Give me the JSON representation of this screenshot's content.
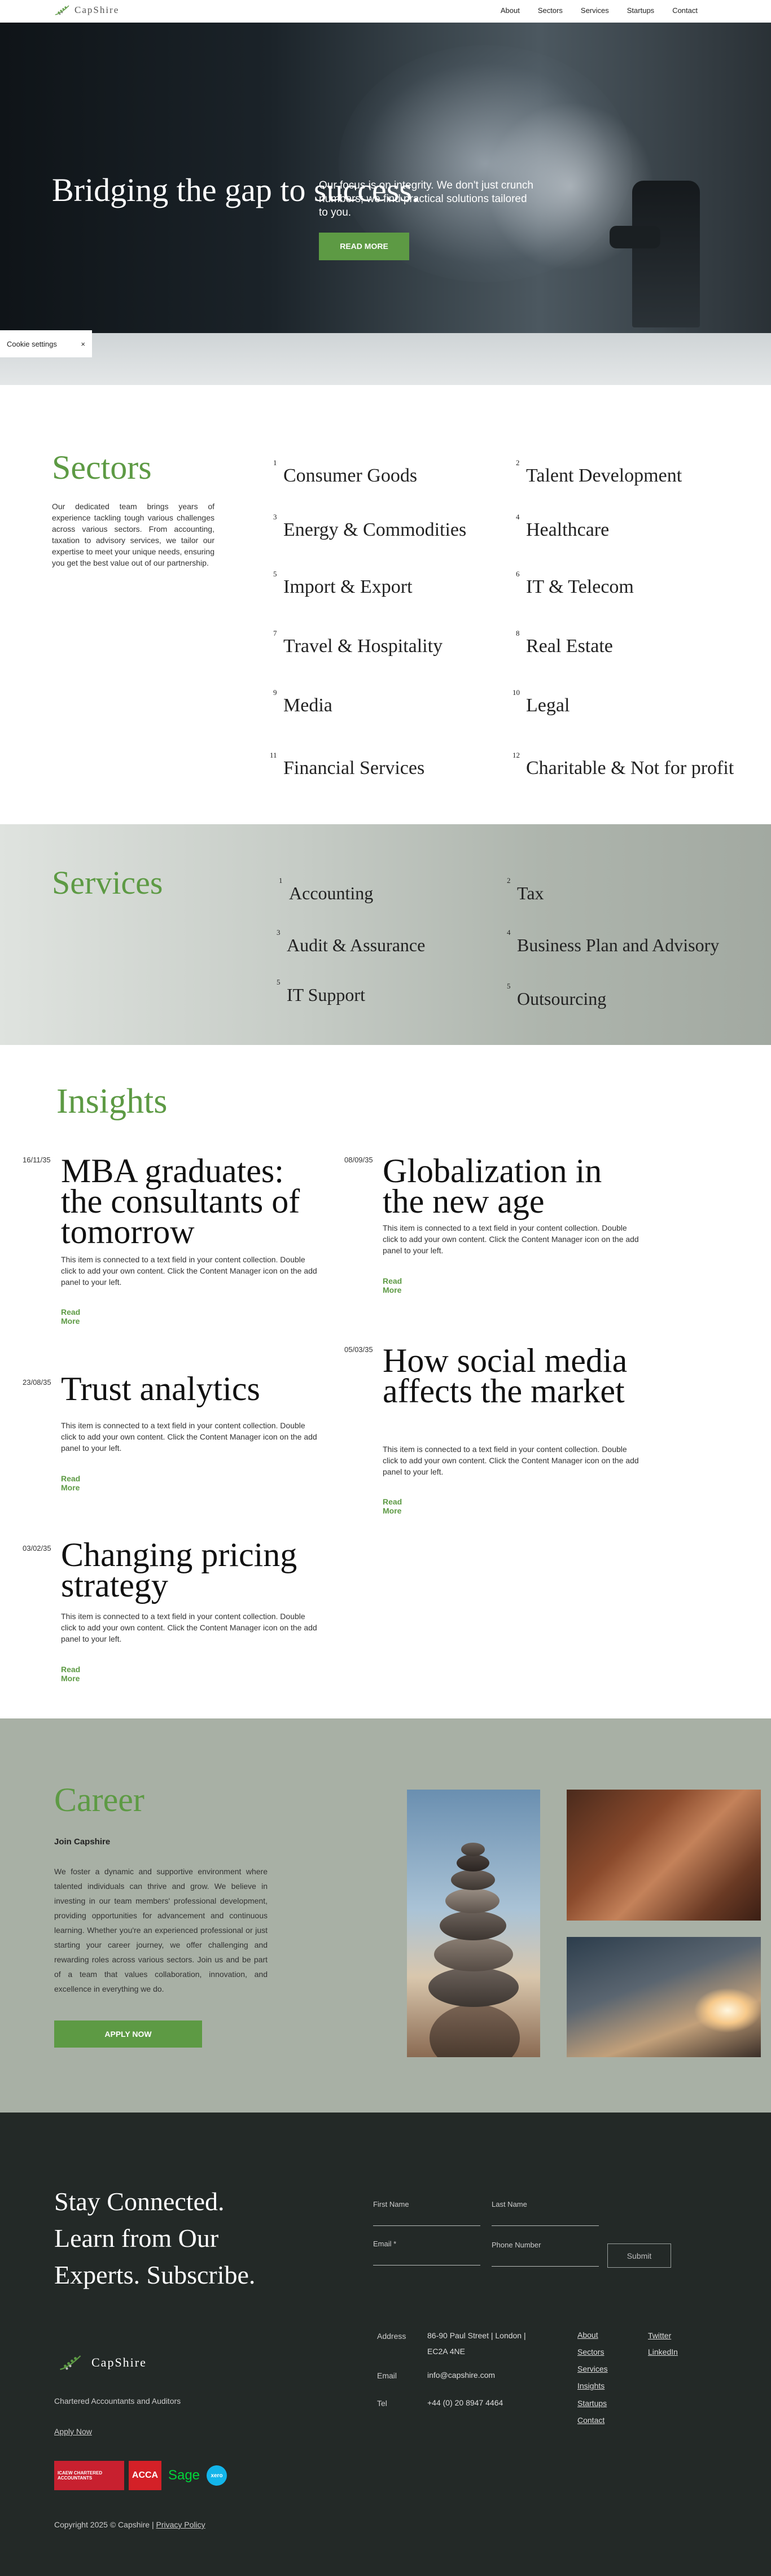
{
  "header": {
    "logo_text": "CapShire",
    "nav": [
      "About",
      "Sectors",
      "Services",
      "Startups",
      "Contact"
    ]
  },
  "hero": {
    "title": "Bridging the gap to success.",
    "text": "Our focus is on integrity. We don't just crunch numbers; we find practical solutions tailored to you.",
    "button": "READ MORE"
  },
  "cookie": {
    "label": "Cookie settings",
    "close": "×"
  },
  "sectors": {
    "title": "Sectors",
    "description": "Our dedicated team brings years of experience tackling tough various challenges across various sectors. From accounting, taxation to advisory services, we tailor our expertise to meet your unique needs, ensuring you get the best value out of our partnership.",
    "items": [
      {
        "n": "1",
        "label": "Consumer Goods"
      },
      {
        "n": "2",
        "label": "Talent Development"
      },
      {
        "n": "3",
        "label": "Energy & Commodities"
      },
      {
        "n": "4",
        "label": "Healthcare"
      },
      {
        "n": "5",
        "label": "Import & Export"
      },
      {
        "n": "6",
        "label": "IT & Telecom"
      },
      {
        "n": "7",
        "label": "Travel & Hospitality"
      },
      {
        "n": "8",
        "label": "Real Estate"
      },
      {
        "n": "9",
        "label": "Media"
      },
      {
        "n": "10",
        "label": "Legal"
      },
      {
        "n": "11",
        "label": "Financial Services"
      },
      {
        "n": "12",
        "label": "Charitable & Not for profit"
      }
    ]
  },
  "services": {
    "title": "Services",
    "items": [
      {
        "n": "1",
        "label": "Accounting"
      },
      {
        "n": "2",
        "label": "Tax"
      },
      {
        "n": "3",
        "label": "Audit & Assurance"
      },
      {
        "n": "4",
        "label": "Business Plan and Advisory"
      },
      {
        "n": "5",
        "label": "IT Support"
      },
      {
        "n": "5",
        "label": "Outsourcing"
      }
    ]
  },
  "insights": {
    "title": "Insights",
    "read_more": "Read More",
    "body": "This item is connected to a text field in your content collection. Double click to add your own content. Click the Content Manager icon on the add panel to your left.",
    "posts": [
      {
        "date": "16/11/35",
        "title": "MBA graduates: the consultants of tomorrow"
      },
      {
        "date": "08/09/35",
        "title": "Globalization in the new age"
      },
      {
        "date": "23/08/35",
        "title": "Trust analytics"
      },
      {
        "date": "05/03/35",
        "title": "How social media affects the market"
      },
      {
        "date": "03/02/35",
        "title": "Changing pricing strategy"
      }
    ]
  },
  "career": {
    "title": "Career",
    "subtitle": "Join Capshire",
    "description": "We foster a dynamic and supportive environment where talented individuals can thrive and grow. We believe in investing in our team members' professional development, providing opportunities for advancement and continuous learning. Whether you're an experienced professional or just starting your career journey, we offer challenging and rewarding roles across various sectors. Join us and be part of a team that values collaboration, innovation, and excellence in everything we do.",
    "button": "APPLY NOW"
  },
  "footer": {
    "headline": "Stay Connected. Learn from Our Experts. Subscribe.",
    "form": {
      "first_name": "First Name",
      "last_name": "Last Name",
      "email": "Email *",
      "phone": "Phone Number",
      "submit": "Submit"
    },
    "logo_text": "CapShire",
    "tagline": "Chartered Accountants and Auditors",
    "apply": "Apply Now",
    "address_label": "Address",
    "address_line1": "86-90 Paul Street | London |",
    "address_line2": "EC2A 4NE",
    "email_label": "Email",
    "email": "info@capshire.com",
    "tel_label": "Tel",
    "tel": "+44 (0) 20 8947 4464",
    "links": [
      "About",
      "Sectors",
      "Services",
      "Insights",
      "Startups",
      "Contact"
    ],
    "social": [
      "Twitter",
      "LinkedIn"
    ],
    "badges": {
      "icaew": "ICAEW CHARTERED ACCOUNTANTS",
      "acca": "ACCA",
      "sage": "Sage",
      "xero": "xero"
    },
    "copyright": "Copyright 2025 © Capshire |",
    "privacy": "Privacy Policy"
  },
  "colors": {
    "accent_green": "#5d9a44",
    "footer_bg": "#232927",
    "career_bg": "#a8b0a5"
  }
}
